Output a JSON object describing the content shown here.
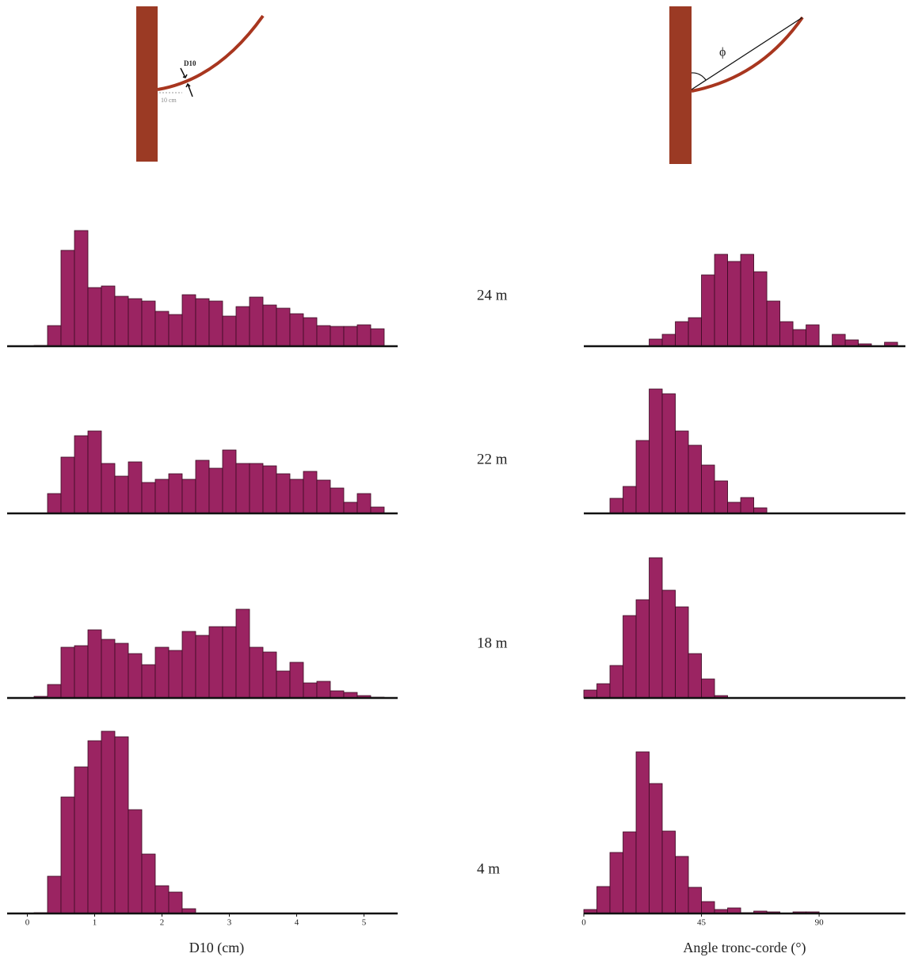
{
  "diagrams": {
    "left": {
      "label": "D10",
      "distance": "10 cm"
    },
    "right": {
      "angle": "ϕ"
    }
  },
  "row_labels": [
    "24 m",
    "22 m",
    "18 m",
    "4 m"
  ],
  "chart_data": [
    {
      "type": "histogram",
      "color": "#9b2462",
      "xlim": [
        -0.3,
        5.5
      ],
      "ylim": [
        0,
        240
      ],
      "bins": [
        0.1,
        0.3,
        0.5,
        0.7,
        0.9,
        1.1,
        1.3,
        1.5,
        1.7,
        1.9,
        2.1,
        2.3,
        2.5,
        2.7,
        2.9,
        3.1,
        3.3,
        3.5,
        3.7,
        3.9,
        4.1,
        4.3,
        4.5,
        4.7,
        4.9,
        5.1,
        5.3
      ],
      "values": [
        1,
        26,
        121,
        146,
        74,
        76,
        63,
        60,
        57,
        44,
        40,
        65,
        60,
        57,
        38,
        50,
        62,
        52,
        48,
        41,
        36,
        26,
        25,
        25,
        27,
        22
      ]
    },
    {
      "type": "histogram",
      "color": "#9b2462",
      "xlim": [
        0,
        123
      ],
      "ylim": [
        0,
        240
      ],
      "bins": [
        0,
        5,
        10,
        15,
        20,
        25,
        30,
        35,
        40,
        45,
        50,
        55,
        60,
        65,
        70,
        75,
        80,
        85,
        90,
        95,
        100,
        105,
        110,
        115,
        120
      ],
      "values": [
        0,
        0,
        0,
        0,
        0,
        9,
        15,
        31,
        36,
        90,
        116,
        107,
        116,
        94,
        57,
        31,
        21,
        27,
        0,
        15,
        8,
        3,
        0,
        5
      ]
    },
    {
      "type": "histogram",
      "color": "#9b2462",
      "xlim": [
        -0.3,
        5.5
      ],
      "ylim": [
        0,
        240
      ],
      "bins": [
        0.1,
        0.3,
        0.5,
        0.7,
        0.9,
        1.1,
        1.3,
        1.5,
        1.7,
        1.9,
        2.1,
        2.3,
        2.5,
        2.7,
        2.9,
        3.1,
        3.3,
        3.5,
        3.7,
        3.9,
        4.1,
        4.3,
        4.5,
        4.7,
        4.9,
        5.1,
        5.3
      ],
      "values": [
        0,
        25,
        71,
        98,
        104,
        63,
        47,
        65,
        39,
        43,
        50,
        43,
        67,
        57,
        80,
        63,
        63,
        60,
        50,
        43,
        53,
        42,
        32,
        14,
        25,
        8
      ]
    },
    {
      "type": "histogram",
      "color": "#9b2462",
      "xlim": [
        0,
        123
      ],
      "ylim": [
        0,
        240
      ],
      "bins": [
        0,
        5,
        10,
        15,
        20,
        25,
        30,
        35,
        40,
        45,
        50,
        55,
        60,
        65,
        70,
        75,
        80,
        85,
        90,
        95,
        100,
        105,
        110,
        115,
        120
      ],
      "values": [
        0,
        0,
        19,
        34,
        92,
        157,
        151,
        104,
        86,
        61,
        41,
        14,
        20,
        7,
        0,
        0,
        0,
        0,
        0,
        0,
        0,
        0,
        0,
        0
      ]
    },
    {
      "type": "histogram",
      "color": "#9b2462",
      "xlim": [
        -0.3,
        5.5
      ],
      "ylim": [
        0,
        240
      ],
      "bins": [
        0.1,
        0.3,
        0.5,
        0.7,
        0.9,
        1.1,
        1.3,
        1.5,
        1.7,
        1.9,
        2.1,
        2.3,
        2.5,
        2.7,
        2.9,
        3.1,
        3.3,
        3.5,
        3.7,
        3.9,
        4.1,
        4.3,
        4.5,
        4.7,
        4.9,
        5.1,
        5.3
      ],
      "values": [
        2,
        17,
        64,
        66,
        86,
        74,
        69,
        56,
        42,
        64,
        60,
        84,
        79,
        90,
        90,
        112,
        64,
        58,
        34,
        45,
        19,
        21,
        9,
        7,
        3,
        1
      ]
    },
    {
      "type": "histogram",
      "color": "#9b2462",
      "xlim": [
        0,
        123
      ],
      "ylim": [
        0,
        240
      ],
      "bins": [
        0,
        5,
        10,
        15,
        20,
        25,
        30,
        35,
        40,
        45,
        50,
        55,
        60,
        65,
        70,
        75,
        80,
        85,
        90,
        95,
        100,
        105,
        110,
        115,
        120
      ],
      "values": [
        10,
        18,
        41,
        104,
        124,
        177,
        136,
        115,
        56,
        24,
        3,
        0,
        0,
        0,
        0,
        0,
        0,
        0,
        0,
        0,
        0,
        0,
        0,
        0
      ]
    },
    {
      "type": "histogram",
      "color": "#9b2462",
      "xlim": [
        -0.3,
        5.5
      ],
      "ylim": [
        0,
        240
      ],
      "bins": [
        0.1,
        0.3,
        0.5,
        0.7,
        0.9,
        1.1,
        1.3,
        1.5,
        1.7,
        1.9,
        2.1,
        2.3,
        2.5,
        2.7,
        2.9,
        3.1,
        3.3,
        3.5,
        3.7,
        3.9,
        4.1,
        4.3,
        4.5,
        4.7,
        4.9,
        5.1,
        5.3
      ],
      "values": [
        1,
        47,
        147,
        185,
        218,
        230,
        223,
        131,
        75,
        35,
        27,
        6,
        0,
        0,
        0,
        0,
        0,
        0,
        0,
        0,
        0,
        0,
        0,
        0,
        0,
        0
      ],
      "xticks": [
        0,
        1,
        2,
        3,
        4,
        5
      ],
      "xlabel": "D10 (cm)"
    },
    {
      "type": "histogram",
      "color": "#9b2462",
      "xlim": [
        0,
        123
      ],
      "ylim": [
        0,
        240
      ],
      "bins": [
        0,
        5,
        10,
        15,
        20,
        25,
        30,
        35,
        40,
        45,
        50,
        55,
        60,
        65,
        70,
        75,
        80,
        85,
        90,
        95,
        100,
        105,
        110,
        115,
        120
      ],
      "values": [
        5,
        34,
        77,
        103,
        204,
        164,
        104,
        72,
        33,
        15,
        5,
        7,
        1,
        3,
        2,
        0,
        2,
        2,
        0,
        0,
        0,
        0,
        0,
        0
      ],
      "xticks": [
        0,
        45,
        90
      ],
      "xlabel": "Angle tronc-corde (°)"
    }
  ]
}
